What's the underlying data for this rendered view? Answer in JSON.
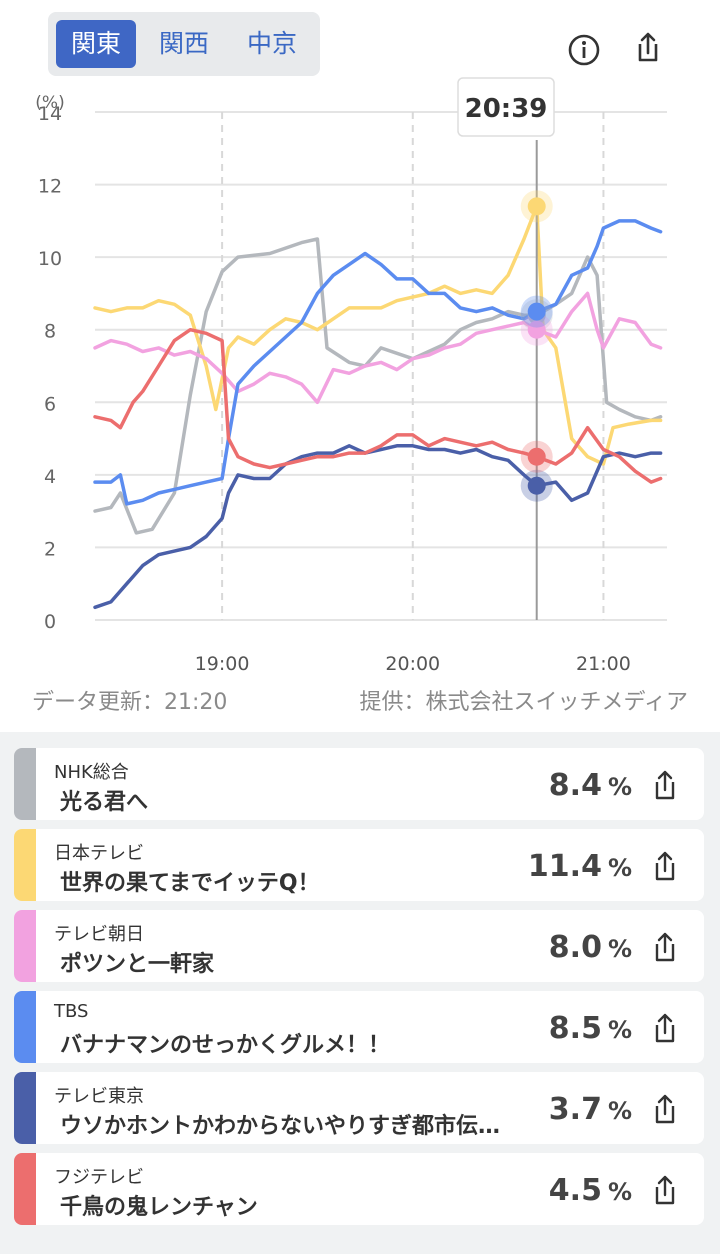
{
  "region_tabs": [
    "関東",
    "関西",
    "中京"
  ],
  "active_region": 0,
  "tooltip_time": "20:39",
  "footer": {
    "updated": "データ更新：21:20",
    "provider": "提供：株式会社スイッチメディア"
  },
  "colors": {
    "nhk": "#b4b8bd",
    "ntv": "#fcd874",
    "tvasahi": "#f2a2e0",
    "tbs": "#5b8cf0",
    "tvtokyo": "#4a5fa8",
    "fuji": "#ec6e6e"
  },
  "chart_data": {
    "type": "line",
    "y_unit": "(%)",
    "ylim": [
      0,
      14
    ],
    "yticks": [
      "0",
      "2",
      "4",
      "6",
      "8",
      "10",
      "12",
      "14"
    ],
    "xlim": [
      "18:20",
      "21:20"
    ],
    "xticks": [
      "19:00",
      "20:00",
      "21:00"
    ],
    "cursor_time": "20:39",
    "grid": true,
    "series": [
      {
        "key": "nhk",
        "points": [
          [
            "18:20",
            3.0
          ],
          [
            "18:25",
            3.1
          ],
          [
            "18:28",
            3.5
          ],
          [
            "18:33",
            2.4
          ],
          [
            "18:38",
            2.5
          ],
          [
            "18:45",
            3.5
          ],
          [
            "18:50",
            6.2
          ],
          [
            "18:55",
            8.5
          ],
          [
            "19:00",
            9.6
          ],
          [
            "19:05",
            10.0
          ],
          [
            "19:15",
            10.1
          ],
          [
            "19:25",
            10.4
          ],
          [
            "19:30",
            10.5
          ],
          [
            "19:33",
            7.5
          ],
          [
            "19:40",
            7.1
          ],
          [
            "19:45",
            7.0
          ],
          [
            "19:50",
            7.5
          ],
          [
            "20:00",
            7.2
          ],
          [
            "20:05",
            7.4
          ],
          [
            "20:10",
            7.6
          ],
          [
            "20:15",
            8.0
          ],
          [
            "20:20",
            8.2
          ],
          [
            "20:25",
            8.3
          ],
          [
            "20:30",
            8.5
          ],
          [
            "20:35",
            8.4
          ],
          [
            "20:39",
            8.4
          ],
          [
            "20:45",
            8.7
          ],
          [
            "20:50",
            9.0
          ],
          [
            "20:55",
            10.0
          ],
          [
            "20:58",
            9.5
          ],
          [
            "21:01",
            6.0
          ],
          [
            "21:05",
            5.8
          ],
          [
            "21:10",
            5.6
          ],
          [
            "21:15",
            5.5
          ],
          [
            "21:18",
            5.6
          ]
        ]
      },
      {
        "key": "ntv",
        "points": [
          [
            "18:20",
            8.6
          ],
          [
            "18:25",
            8.5
          ],
          [
            "18:30",
            8.6
          ],
          [
            "18:35",
            8.6
          ],
          [
            "18:40",
            8.8
          ],
          [
            "18:45",
            8.7
          ],
          [
            "18:50",
            8.4
          ],
          [
            "18:55",
            7.0
          ],
          [
            "18:58",
            5.8
          ],
          [
            "19:02",
            7.5
          ],
          [
            "19:05",
            7.8
          ],
          [
            "19:10",
            7.6
          ],
          [
            "19:15",
            8.0
          ],
          [
            "19:20",
            8.3
          ],
          [
            "19:25",
            8.2
          ],
          [
            "19:30",
            8.0
          ],
          [
            "19:35",
            8.3
          ],
          [
            "19:40",
            8.6
          ],
          [
            "19:45",
            8.6
          ],
          [
            "19:50",
            8.6
          ],
          [
            "19:55",
            8.8
          ],
          [
            "20:00",
            8.9
          ],
          [
            "20:05",
            9.0
          ],
          [
            "20:10",
            9.2
          ],
          [
            "20:15",
            9.0
          ],
          [
            "20:20",
            9.1
          ],
          [
            "20:25",
            9.0
          ],
          [
            "20:30",
            9.5
          ],
          [
            "20:35",
            10.5
          ],
          [
            "20:39",
            11.4
          ],
          [
            "20:41",
            8.0
          ],
          [
            "20:45",
            7.5
          ],
          [
            "20:50",
            5.0
          ],
          [
            "20:55",
            4.5
          ],
          [
            "21:00",
            4.3
          ],
          [
            "21:03",
            5.3
          ],
          [
            "21:08",
            5.4
          ],
          [
            "21:15",
            5.5
          ],
          [
            "21:18",
            5.5
          ]
        ]
      },
      {
        "key": "tvasahi",
        "points": [
          [
            "18:20",
            7.5
          ],
          [
            "18:25",
            7.7
          ],
          [
            "18:30",
            7.6
          ],
          [
            "18:35",
            7.4
          ],
          [
            "18:40",
            7.5
          ],
          [
            "18:45",
            7.3
          ],
          [
            "18:50",
            7.4
          ],
          [
            "18:55",
            7.2
          ],
          [
            "19:00",
            6.8
          ],
          [
            "19:05",
            6.3
          ],
          [
            "19:10",
            6.5
          ],
          [
            "19:15",
            6.8
          ],
          [
            "19:20",
            6.7
          ],
          [
            "19:25",
            6.5
          ],
          [
            "19:30",
            6.0
          ],
          [
            "19:35",
            6.9
          ],
          [
            "19:40",
            6.8
          ],
          [
            "19:45",
            7.0
          ],
          [
            "19:50",
            7.1
          ],
          [
            "19:55",
            6.9
          ],
          [
            "20:00",
            7.2
          ],
          [
            "20:05",
            7.3
          ],
          [
            "20:10",
            7.5
          ],
          [
            "20:15",
            7.6
          ],
          [
            "20:20",
            7.9
          ],
          [
            "20:25",
            8.0
          ],
          [
            "20:30",
            8.1
          ],
          [
            "20:35",
            8.2
          ],
          [
            "20:39",
            8.0
          ],
          [
            "20:45",
            7.8
          ],
          [
            "20:50",
            8.5
          ],
          [
            "20:55",
            9.0
          ],
          [
            "20:58",
            8.0
          ],
          [
            "21:00",
            7.5
          ],
          [
            "21:05",
            8.3
          ],
          [
            "21:10",
            8.2
          ],
          [
            "21:15",
            7.6
          ],
          [
            "21:18",
            7.5
          ]
        ]
      },
      {
        "key": "tbs",
        "points": [
          [
            "18:20",
            3.8
          ],
          [
            "18:25",
            3.8
          ],
          [
            "18:28",
            4.0
          ],
          [
            "18:30",
            3.2
          ],
          [
            "18:35",
            3.3
          ],
          [
            "18:40",
            3.5
          ],
          [
            "18:45",
            3.6
          ],
          [
            "18:50",
            3.7
          ],
          [
            "18:55",
            3.8
          ],
          [
            "19:00",
            3.9
          ],
          [
            "19:02",
            5.0
          ],
          [
            "19:05",
            6.5
          ],
          [
            "19:10",
            7.0
          ],
          [
            "19:15",
            7.4
          ],
          [
            "19:20",
            7.8
          ],
          [
            "19:25",
            8.2
          ],
          [
            "19:30",
            9.0
          ],
          [
            "19:35",
            9.5
          ],
          [
            "19:40",
            9.8
          ],
          [
            "19:45",
            10.1
          ],
          [
            "19:50",
            9.8
          ],
          [
            "19:55",
            9.4
          ],
          [
            "20:00",
            9.4
          ],
          [
            "20:05",
            9.0
          ],
          [
            "20:10",
            9.0
          ],
          [
            "20:15",
            8.6
          ],
          [
            "20:20",
            8.5
          ],
          [
            "20:25",
            8.6
          ],
          [
            "20:30",
            8.4
          ],
          [
            "20:35",
            8.3
          ],
          [
            "20:39",
            8.5
          ],
          [
            "20:45",
            8.7
          ],
          [
            "20:50",
            9.5
          ],
          [
            "20:55",
            9.7
          ],
          [
            "20:58",
            10.3
          ],
          [
            "21:00",
            10.8
          ],
          [
            "21:05",
            11.0
          ],
          [
            "21:10",
            11.0
          ],
          [
            "21:15",
            10.8
          ],
          [
            "21:18",
            10.7
          ]
        ]
      },
      {
        "key": "tvtokyo",
        "points": [
          [
            "18:20",
            0.35
          ],
          [
            "18:25",
            0.5
          ],
          [
            "18:30",
            1.0
          ],
          [
            "18:35",
            1.5
          ],
          [
            "18:40",
            1.8
          ],
          [
            "18:45",
            1.9
          ],
          [
            "18:50",
            2.0
          ],
          [
            "18:55",
            2.3
          ],
          [
            "19:00",
            2.8
          ],
          [
            "19:02",
            3.5
          ],
          [
            "19:05",
            4.0
          ],
          [
            "19:10",
            3.9
          ],
          [
            "19:15",
            3.9
          ],
          [
            "19:20",
            4.3
          ],
          [
            "19:25",
            4.5
          ],
          [
            "19:30",
            4.6
          ],
          [
            "19:35",
            4.6
          ],
          [
            "19:40",
            4.8
          ],
          [
            "19:45",
            4.6
          ],
          [
            "19:50",
            4.7
          ],
          [
            "19:55",
            4.8
          ],
          [
            "20:00",
            4.8
          ],
          [
            "20:05",
            4.7
          ],
          [
            "20:10",
            4.7
          ],
          [
            "20:15",
            4.6
          ],
          [
            "20:20",
            4.7
          ],
          [
            "20:25",
            4.5
          ],
          [
            "20:30",
            4.4
          ],
          [
            "20:35",
            4.0
          ],
          [
            "20:39",
            3.7
          ],
          [
            "20:45",
            3.8
          ],
          [
            "20:50",
            3.3
          ],
          [
            "20:55",
            3.5
          ],
          [
            "21:00",
            4.5
          ],
          [
            "21:05",
            4.6
          ],
          [
            "21:10",
            4.5
          ],
          [
            "21:15",
            4.6
          ],
          [
            "21:18",
            4.6
          ]
        ]
      },
      {
        "key": "fuji",
        "points": [
          [
            "18:20",
            5.6
          ],
          [
            "18:25",
            5.5
          ],
          [
            "18:28",
            5.3
          ],
          [
            "18:32",
            6.0
          ],
          [
            "18:35",
            6.3
          ],
          [
            "18:40",
            7.0
          ],
          [
            "18:45",
            7.7
          ],
          [
            "18:50",
            8.0
          ],
          [
            "18:55",
            7.9
          ],
          [
            "19:00",
            7.7
          ],
          [
            "19:02",
            5.0
          ],
          [
            "19:05",
            4.5
          ],
          [
            "19:10",
            4.3
          ],
          [
            "19:15",
            4.2
          ],
          [
            "19:20",
            4.3
          ],
          [
            "19:25",
            4.4
          ],
          [
            "19:30",
            4.5
          ],
          [
            "19:35",
            4.5
          ],
          [
            "19:40",
            4.6
          ],
          [
            "19:45",
            4.6
          ],
          [
            "19:50",
            4.8
          ],
          [
            "19:55",
            5.1
          ],
          [
            "20:00",
            5.1
          ],
          [
            "20:05",
            4.8
          ],
          [
            "20:10",
            5.0
          ],
          [
            "20:15",
            4.9
          ],
          [
            "20:20",
            4.8
          ],
          [
            "20:25",
            4.9
          ],
          [
            "20:30",
            4.7
          ],
          [
            "20:35",
            4.6
          ],
          [
            "20:39",
            4.5
          ],
          [
            "20:45",
            4.3
          ],
          [
            "20:50",
            4.6
          ],
          [
            "20:55",
            5.3
          ],
          [
            "21:00",
            4.7
          ],
          [
            "21:05",
            4.5
          ],
          [
            "21:10",
            4.1
          ],
          [
            "21:15",
            3.8
          ],
          [
            "21:18",
            3.9
          ]
        ]
      }
    ]
  },
  "channels": [
    {
      "key": "nhk",
      "name": "NHK総合",
      "program": "光る君へ",
      "value": "8.4",
      "unit": "%"
    },
    {
      "key": "ntv",
      "name": "日本テレビ",
      "program": "世界の果てまでイッテQ！",
      "value": "11.4",
      "unit": "%"
    },
    {
      "key": "tvasahi",
      "name": "テレビ朝日",
      "program": "ポツンと一軒家",
      "value": "8.0",
      "unit": "%"
    },
    {
      "key": "tbs",
      "name": "TBS",
      "program": "バナナマンのせっかくグルメ！！",
      "value": "8.5",
      "unit": "%"
    },
    {
      "key": "tvtokyo",
      "name": "テレビ東京",
      "program": "ウソかホントかわからないやりすぎ都市伝…",
      "value": "3.7",
      "unit": "%"
    },
    {
      "key": "fuji",
      "name": "フジテレビ",
      "program": "千鳥の鬼レンチャン",
      "value": "4.5",
      "unit": "%"
    }
  ]
}
